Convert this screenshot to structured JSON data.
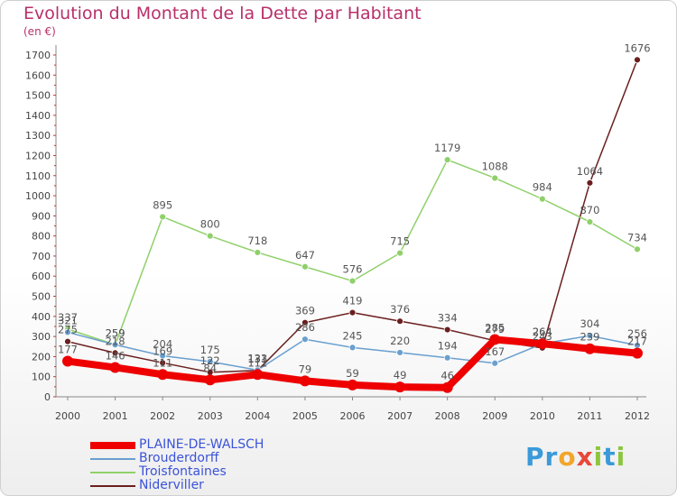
{
  "header": {
    "title": "Evolution du Montant de la Dette par Habitant",
    "subtitle": "(en €)"
  },
  "logo": {
    "letters": [
      "P",
      "r",
      "o",
      "x",
      "i",
      "t",
      "i"
    ],
    "colors": [
      "#3a9ad9",
      "#3a9ad9",
      "#f2a52b",
      "#e8463a",
      "#8cc63f",
      "#3a9ad9",
      "#8cc63f"
    ]
  },
  "chart_data": {
    "type": "line",
    "title": "Evolution du Montant de la Dette par Habitant",
    "ylabel": "(en €)",
    "categories": [
      "2000",
      "2001",
      "2002",
      "2003",
      "2004",
      "2005",
      "2006",
      "2007",
      "2008",
      "2009",
      "2010",
      "2011",
      "2012"
    ],
    "ylim": [
      0,
      1700
    ],
    "yticks": [
      0,
      100,
      200,
      300,
      400,
      500,
      600,
      700,
      800,
      900,
      1000,
      1100,
      1200,
      1300,
      1400,
      1500,
      1600,
      1700
    ],
    "grid": false,
    "legend_position": "bottom-left",
    "series": [
      {
        "name": "PLAINE-DE-WALSCH",
        "color": "#ee0000",
        "values": [
          177,
          146,
          111,
          84,
          111,
          79,
          59,
          49,
          46,
          285,
          264,
          239,
          217
        ],
        "labels": [
          "177",
          "146",
          "111",
          "84",
          "111",
          "79",
          "59",
          "49",
          "46",
          "285",
          "264",
          "239",
          "217"
        ]
      },
      {
        "name": "Brouderdorff",
        "color": "#6a9fcf",
        "values": [
          321,
          259,
          204,
          175,
          133,
          286,
          245,
          220,
          194,
          167,
          264,
          304,
          256
        ],
        "labels": [
          "321",
          "259",
          "204",
          "175",
          "133",
          "286",
          "245",
          "220",
          "194",
          "167",
          "264",
          "304",
          "256"
        ]
      },
      {
        "name": "Troisfontaines",
        "color": "#8fd06a",
        "values": [
          337,
          259,
          895,
          800,
          718,
          647,
          576,
          715,
          1179,
          1088,
          984,
          870,
          734
        ],
        "labels": [
          "337",
          "259",
          "895",
          "800",
          "718",
          "647",
          "576",
          "715",
          "1179",
          "1088",
          "984",
          "870",
          "734"
        ]
      },
      {
        "name": "Niderviller",
        "color": "#6b1e1e",
        "values": [
          275,
          218,
          169,
          122,
          131,
          369,
          419,
          376,
          334,
          279,
          243,
          1064,
          1676
        ],
        "labels": [
          "275",
          "218",
          "169",
          "122",
          "131",
          "369",
          "419",
          "376",
          "334",
          "279",
          "243",
          "1064",
          "1676"
        ]
      }
    ]
  }
}
